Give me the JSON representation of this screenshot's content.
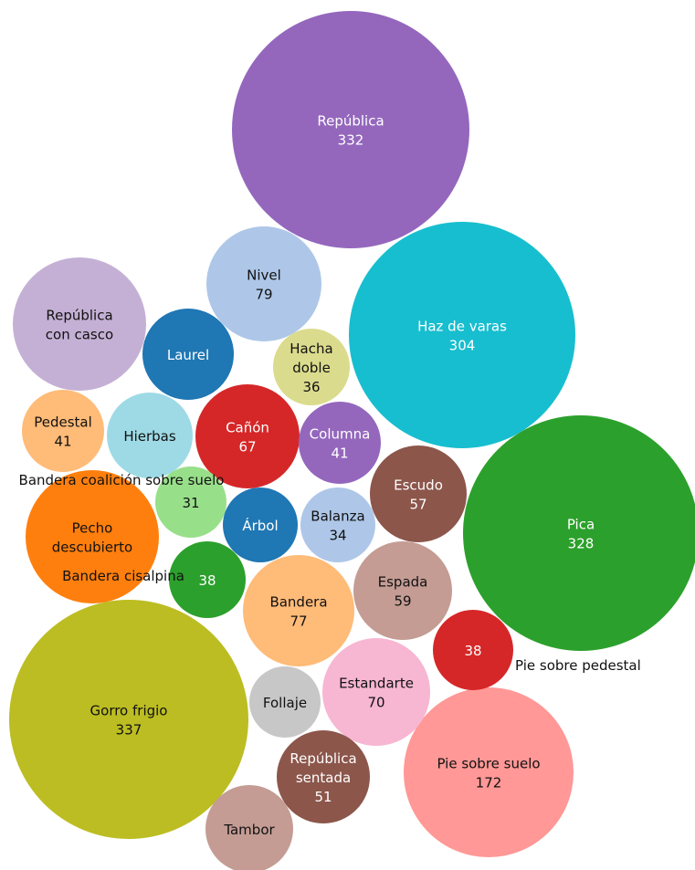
{
  "chart_data": {
    "type": "bubble",
    "title": "",
    "bubbles": [
      {
        "label": "República",
        "value": 332,
        "color": "#9467bd",
        "text_color": "#ffffff"
      },
      {
        "label": "Haz de varas",
        "value": 304,
        "color": "#17becf",
        "text_color": "#ffffff"
      },
      {
        "label": "Pica",
        "value": 328,
        "color": "#2ca02c",
        "text_color": "#ffffff"
      },
      {
        "label": "Gorro frigio",
        "value": 337,
        "color": "#bcbd22",
        "text_color": "#111111"
      },
      {
        "label": "Pie sobre suelo",
        "value": 172,
        "color": "#ff9896",
        "text_color": "#111111"
      },
      {
        "label": "Nivel",
        "value": 79,
        "color": "#aec7e8",
        "text_color": "#111111"
      },
      {
        "label": "República con casco",
        "value": null,
        "color": "#c5b0d5",
        "text_color": "#111111"
      },
      {
        "label": "Laurel",
        "value": null,
        "color": "#1f77b4",
        "text_color": "#ffffff"
      },
      {
        "label": "Hacha doble",
        "value": 36,
        "color": "#dbdb8d",
        "text_color": "#111111"
      },
      {
        "label": "Pedestal",
        "value": 41,
        "color": "#ffbb78",
        "text_color": "#111111"
      },
      {
        "label": "Hierbas",
        "value": null,
        "color": "#9edae5",
        "text_color": "#111111"
      },
      {
        "label": "Cañón",
        "value": 67,
        "color": "#d62728",
        "text_color": "#ffffff"
      },
      {
        "label": "Columna",
        "value": 41,
        "color": "#9467bd",
        "text_color": "#ffffff"
      },
      {
        "label": "Escudo",
        "value": 57,
        "color": "#8c564b",
        "text_color": "#ffffff"
      },
      {
        "label": "Pecho descubierto",
        "value": null,
        "color": "#ff7f0e",
        "text_color": "#111111"
      },
      {
        "label": "Bandera coalición sobre suelo",
        "value": 31,
        "color": "#98df8a",
        "text_color": "#111111"
      },
      {
        "label": "Árbol",
        "value": null,
        "color": "#1f77b4",
        "text_color": "#ffffff"
      },
      {
        "label": "Balanza",
        "value": 34,
        "color": "#aec7e8",
        "text_color": "#111111"
      },
      {
        "label": "Bandera cisalpina",
        "value": 38,
        "color": "#2ca02c",
        "text_color": "#ffffff"
      },
      {
        "label": "Espada",
        "value": 59,
        "color": "#c49c94",
        "text_color": "#111111"
      },
      {
        "label": "Bandera",
        "value": 77,
        "color": "#ffbb78",
        "text_color": "#111111"
      },
      {
        "label": "Pie sobre pedestal",
        "value": 38,
        "color": "#d62728",
        "text_color": "#ffffff"
      },
      {
        "label": "Estandarte",
        "value": 70,
        "color": "#f7b6d2",
        "text_color": "#111111"
      },
      {
        "label": "Follaje",
        "value": null,
        "color": "#c7c7c7",
        "text_color": "#111111"
      },
      {
        "label": "República sentada",
        "value": 51,
        "color": "#8c564b",
        "text_color": "#ffffff"
      },
      {
        "label": "Tambor",
        "value": null,
        "color": "#c49c94",
        "text_color": "#111111"
      }
    ]
  }
}
